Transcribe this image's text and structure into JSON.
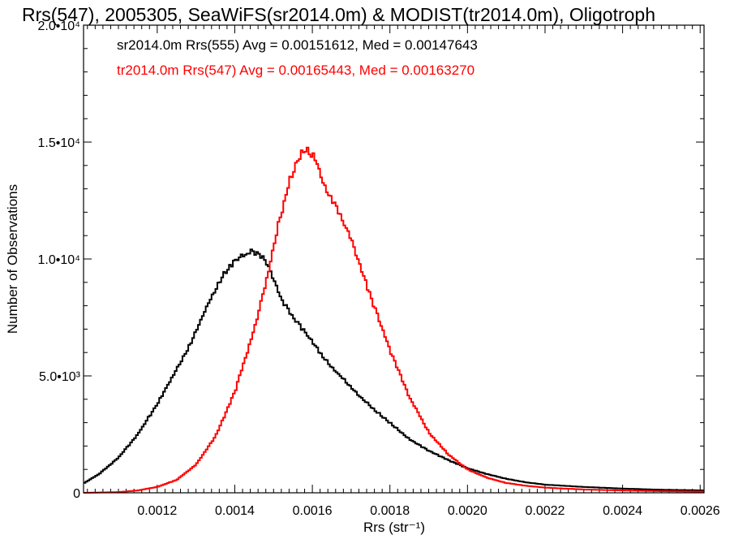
{
  "chart_data": {
    "type": "line",
    "title": "Rrs(547), 2005305, SeaWiFS(sr2014.0m) & MODIST(tr2014.0m), Oligotroph",
    "xlabel": "Rrs (str⁻¹)",
    "ylabel": "Number of Observations",
    "xlim": [
      0.00101,
      0.00261
    ],
    "ylim": [
      0,
      20000
    ],
    "x_ticks": [
      0.0012,
      0.0014,
      0.0016,
      0.0018,
      0.002,
      0.0022,
      0.0024,
      0.0026
    ],
    "x_tick_labels": [
      "0.0012",
      "0.0014",
      "0.0016",
      "0.0018",
      "0.0020",
      "0.0022",
      "0.0024",
      "0.0026"
    ],
    "y_ticks": [
      0,
      5000,
      10000,
      15000,
      20000
    ],
    "y_tick_labels": [
      "0",
      "5.0•10³",
      "1.0•10⁴",
      "1.5•10⁴",
      "2.0•10⁴"
    ],
    "grid": false,
    "legend_placement": "top-left",
    "series": [
      {
        "name": "sr2014.0m Rrs(555) Avg = 0.00151612, Med = 0.00147643",
        "color": "#000000",
        "x": [
          0.00101,
          0.00105,
          0.0011,
          0.00115,
          0.0012,
          0.00125,
          0.00128,
          0.00131,
          0.00134,
          0.00137,
          0.0014,
          0.00142,
          0.00144,
          0.00146,
          0.00148,
          0.0015,
          0.00152,
          0.00155,
          0.00158,
          0.00161,
          0.00165,
          0.0017,
          0.00175,
          0.0018,
          0.00185,
          0.0019,
          0.00195,
          0.002,
          0.00205,
          0.0021,
          0.00215,
          0.0022,
          0.0023,
          0.0024,
          0.0025,
          0.00261
        ],
        "values": [
          400,
          800,
          1500,
          2500,
          3800,
          5300,
          6200,
          7300,
          8400,
          9300,
          9900,
          10100,
          10300,
          10200,
          9900,
          9100,
          8300,
          7500,
          6900,
          6200,
          5400,
          4500,
          3700,
          3000,
          2300,
          1800,
          1400,
          1050,
          800,
          600,
          450,
          350,
          250,
          180,
          130,
          100
        ]
      },
      {
        "name": "tr2014.0m Rrs(547) Avg = 0.00165443, Med = 0.00163270",
        "color": "#ff0000",
        "x": [
          0.00101,
          0.0011,
          0.00115,
          0.0012,
          0.00125,
          0.0013,
          0.00135,
          0.0014,
          0.00145,
          0.00148,
          0.00151,
          0.00154,
          0.00157,
          0.00159,
          0.00161,
          0.00163,
          0.00166,
          0.0017,
          0.00175,
          0.0018,
          0.00185,
          0.0019,
          0.00195,
          0.002,
          0.00205,
          0.0021,
          0.00215,
          0.0022,
          0.0023,
          0.0024,
          0.0025,
          0.00261
        ],
        "values": [
          0,
          30,
          100,
          250,
          550,
          1200,
          2400,
          4300,
          7000,
          9000,
          11300,
          13300,
          14500,
          14700,
          14200,
          13200,
          12300,
          10800,
          8400,
          6100,
          4100,
          2600,
          1650,
          1000,
          650,
          420,
          300,
          220,
          140,
          100,
          70,
          50
        ]
      }
    ]
  }
}
